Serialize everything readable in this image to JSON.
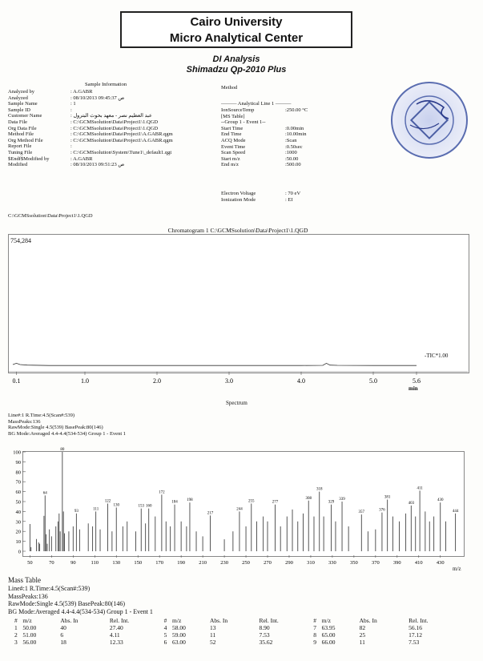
{
  "header": {
    "line1": "Cairo University",
    "line2": "Micro Analytical Center",
    "analysis": "DI Analysis",
    "instrument": "Shimadzu Qp-2010 Plus"
  },
  "sample_info": {
    "title": "Sample Information",
    "rows": [
      {
        "k": "Analyzed by",
        "v": ": A.GABR"
      },
      {
        "k": "Analyzed",
        "v": ": 08/10/2013 09:45:37 ص"
      },
      {
        "k": "Sample Name",
        "v": ": 1"
      },
      {
        "k": "Sample ID",
        "v": ":"
      },
      {
        "k": "Customer Name",
        "v": ": عبد العظيم نصر - معهد بحوث البترول"
      },
      {
        "k": "Data File",
        "v": ": C:\\GCMSsolution\\Data\\Project1\\1.QGD"
      },
      {
        "k": "Org Data File",
        "v": ": C:\\GCMSsolution\\Data\\Project1\\1.QGD"
      },
      {
        "k": "Method File",
        "v": ": C:\\GCMSsolution\\Data\\Project1\\A.GABR.qgm"
      },
      {
        "k": "Org Method File",
        "v": ": C:\\GCMSsolution\\Data\\Project1\\A.GABR.qgm"
      },
      {
        "k": "Report File",
        "v": ":"
      },
      {
        "k": "Tuning File",
        "v": ": C:\\GCMSsolution\\System\\Tune1\\_default1.qgt"
      },
      {
        "k": "$Endf$Modified by",
        "v": ": A.GABR"
      },
      {
        "k": "Modified",
        "v": ": 08/10/2013 09:51:23 ص"
      }
    ]
  },
  "method": {
    "title": "Method",
    "line_title": "——— Analytical Line 1 ———",
    "rows": [
      {
        "k": "IonSourceTemp",
        "v": ":250.00 °C"
      },
      {
        "k": "[MS Table]",
        "v": ""
      },
      {
        "k": "--Group  1 - Event  1--",
        "v": ""
      },
      {
        "k": "Start Time",
        "v": ":0.00min"
      },
      {
        "k": "End Time",
        "v": ":10.00min"
      },
      {
        "k": "ACQ Mode",
        "v": ":Scan"
      },
      {
        "k": "Event Time",
        "v": ":0.50sec"
      },
      {
        "k": "Scan Speed",
        "v": ":1000"
      },
      {
        "k": "Start m/z",
        "v": ":50.00"
      },
      {
        "k": "End m/z",
        "v": ":500.00"
      }
    ],
    "rows2": [
      {
        "k": "Electron Voltage",
        "v": ": 70 eV"
      },
      {
        "k": "Ionization Mode",
        "v": ": EI"
      }
    ]
  },
  "data_path": "C:\\GCMSsolution\\Data\\Project1\\1.QGD",
  "chromatogram": {
    "title": "Chromatogram 1 C:\\GCMSsolution\\Data\\Project1\\1.QGD",
    "max_label": "754,284",
    "trace_label": "-TIC*1.00",
    "x_unit": "min"
  },
  "spectrum_title": "Spectrum",
  "spectrum_info": [
    "Line#:1   R.Time:4.5(Scan#:539)",
    "MassPeaks:136",
    "RawMode:Single 4.5(539)  BasePeak:80(146)",
    "BG Mode:Averaged 4.4-4.4(534-534) Group 1 - Event 1"
  ],
  "spectrum_x_unit": "m/z",
  "mass_table": {
    "title": "Mass Table",
    "info": [
      "Line#:1   R.Time:4.5(Scan#:539)",
      "MassPeaks:136",
      "RawMode:Single 4.5(539) BasePeak:80(146)",
      "BG Mode:Averaged 4.4-4.4(534-534) Group 1 - Event 1"
    ],
    "headers": [
      "#",
      "m/z",
      "Abs. In",
      "Rel. Int.",
      "#",
      "m/z",
      "Abs. In",
      "Rel. Int.",
      "#",
      "m/z",
      "Abs. In",
      "Rel. Int."
    ],
    "rows": [
      [
        "1",
        "50.00",
        "40",
        "27.40",
        "4",
        "58.00",
        "13",
        "8.90",
        "7",
        "63.95",
        "82",
        "56.16"
      ],
      [
        "2",
        "51.00",
        "6",
        "4.11",
        "5",
        "59.00",
        "11",
        "7.53",
        "8",
        "65.00",
        "25",
        "17.12"
      ],
      [
        "3",
        "56.00",
        "18",
        "12.33",
        "6",
        "63.00",
        "52",
        "35.62",
        "9",
        "66.00",
        "11",
        "7.53"
      ]
    ]
  },
  "chart_data": [
    {
      "type": "line",
      "title": "Chromatogram 1 C:\\GCMSsolution\\Data\\Project1\\1.QGD",
      "xlabel": "min",
      "ylabel": "",
      "xlim": [
        0.0,
        5.6
      ],
      "x_ticks": [
        "0.1",
        "1.0",
        "2.0",
        "3.0",
        "4.0",
        "5.0",
        "5.6"
      ],
      "series": [
        {
          "name": "-TIC*1.00",
          "x": [
            0.0,
            0.05,
            0.1,
            0.2,
            0.5,
            1.0,
            1.5,
            2.0,
            2.5,
            3.0,
            3.5,
            4.0,
            4.3,
            4.35,
            4.4,
            4.5,
            5.0,
            5.5,
            5.6
          ],
          "y": [
            0.02,
            0.03,
            0.02,
            0.015,
            0.012,
            0.012,
            0.012,
            0.012,
            0.012,
            0.012,
            0.012,
            0.012,
            0.013,
            0.03,
            0.015,
            0.013,
            0.012,
            0.012,
            0.012
          ]
        }
      ]
    },
    {
      "type": "bar",
      "title": "Spectrum",
      "xlabel": "m/z",
      "ylabel": "",
      "xlim": [
        46,
        448
      ],
      "ylim": [
        0,
        100
      ],
      "y_ticks": [
        "0",
        "10",
        "20",
        "30",
        "40",
        "50",
        "60",
        "70",
        "80",
        "90",
        "100"
      ],
      "x_ticks": [
        "50",
        "70",
        "90",
        "110",
        "130",
        "150",
        "170",
        "190",
        "210",
        "230",
        "250",
        "270",
        "290",
        "310",
        "330",
        "350",
        "370",
        "390",
        "410",
        "430"
      ],
      "peaks": [
        {
          "mz": 50,
          "rel": 27.4
        },
        {
          "mz": 51,
          "rel": 4.11
        },
        {
          "mz": 56,
          "rel": 12.33
        },
        {
          "mz": 58,
          "rel": 8.9
        },
        {
          "mz": 59,
          "rel": 7.53
        },
        {
          "mz": 63,
          "rel": 35.62
        },
        {
          "mz": 64,
          "rel": 56.16
        },
        {
          "mz": 65,
          "rel": 17.12
        },
        {
          "mz": 66,
          "rel": 7.53
        },
        {
          "mz": 68,
          "rel": 22
        },
        {
          "mz": 70,
          "rel": 15
        },
        {
          "mz": 74,
          "rel": 25
        },
        {
          "mz": 76,
          "rel": 30
        },
        {
          "mz": 77,
          "rel": 38
        },
        {
          "mz": 78,
          "rel": 20
        },
        {
          "mz": 80,
          "rel": 100
        },
        {
          "mz": 81,
          "rel": 40
        },
        {
          "mz": 82,
          "rel": 18
        },
        {
          "mz": 86,
          "rel": 20
        },
        {
          "mz": 90,
          "rel": 25
        },
        {
          "mz": 93,
          "rel": 38
        },
        {
          "mz": 96,
          "rel": 22
        },
        {
          "mz": 104,
          "rel": 28
        },
        {
          "mz": 108,
          "rel": 25
        },
        {
          "mz": 111,
          "rel": 40
        },
        {
          "mz": 115,
          "rel": 22
        },
        {
          "mz": 122,
          "rel": 48
        },
        {
          "mz": 126,
          "rel": 20
        },
        {
          "mz": 130,
          "rel": 44
        },
        {
          "mz": 136,
          "rel": 25
        },
        {
          "mz": 140,
          "rel": 30
        },
        {
          "mz": 148,
          "rel": 20
        },
        {
          "mz": 153,
          "rel": 43
        },
        {
          "mz": 157,
          "rel": 28
        },
        {
          "mz": 160,
          "rel": 43
        },
        {
          "mz": 166,
          "rel": 35
        },
        {
          "mz": 172,
          "rel": 57
        },
        {
          "mz": 176,
          "rel": 30
        },
        {
          "mz": 180,
          "rel": 25
        },
        {
          "mz": 184,
          "rel": 47
        },
        {
          "mz": 190,
          "rel": 30
        },
        {
          "mz": 195,
          "rel": 25
        },
        {
          "mz": 198,
          "rel": 49
        },
        {
          "mz": 204,
          "rel": 20
        },
        {
          "mz": 210,
          "rel": 15
        },
        {
          "mz": 217,
          "rel": 36
        },
        {
          "mz": 230,
          "rel": 12
        },
        {
          "mz": 238,
          "rel": 20
        },
        {
          "mz": 244,
          "rel": 40
        },
        {
          "mz": 250,
          "rel": 25
        },
        {
          "mz": 255,
          "rel": 48
        },
        {
          "mz": 260,
          "rel": 30
        },
        {
          "mz": 266,
          "rel": 35
        },
        {
          "mz": 270,
          "rel": 30
        },
        {
          "mz": 277,
          "rel": 47
        },
        {
          "mz": 282,
          "rel": 25
        },
        {
          "mz": 288,
          "rel": 35
        },
        {
          "mz": 293,
          "rel": 42
        },
        {
          "mz": 298,
          "rel": 30
        },
        {
          "mz": 303,
          "rel": 38
        },
        {
          "mz": 308,
          "rel": 51
        },
        {
          "mz": 313,
          "rel": 35
        },
        {
          "mz": 318,
          "rel": 60
        },
        {
          "mz": 322,
          "rel": 35
        },
        {
          "mz": 329,
          "rel": 47
        },
        {
          "mz": 333,
          "rel": 30
        },
        {
          "mz": 339,
          "rel": 50
        },
        {
          "mz": 345,
          "rel": 25
        },
        {
          "mz": 357,
          "rel": 37
        },
        {
          "mz": 363,
          "rel": 20
        },
        {
          "mz": 370,
          "rel": 22
        },
        {
          "mz": 376,
          "rel": 39
        },
        {
          "mz": 381,
          "rel": 52
        },
        {
          "mz": 386,
          "rel": 35
        },
        {
          "mz": 392,
          "rel": 30
        },
        {
          "mz": 398,
          "rel": 38
        },
        {
          "mz": 403,
          "rel": 46
        },
        {
          "mz": 407,
          "rel": 35
        },
        {
          "mz": 411,
          "rel": 61
        },
        {
          "mz": 416,
          "rel": 40
        },
        {
          "mz": 420,
          "rel": 30
        },
        {
          "mz": 424,
          "rel": 35
        },
        {
          "mz": 430,
          "rel": 49
        },
        {
          "mz": 435,
          "rel": 30
        },
        {
          "mz": 444,
          "rel": 38
        }
      ],
      "labeled_peaks": [
        64,
        80,
        93,
        111,
        122,
        130,
        153,
        160,
        172,
        184,
        198,
        217,
        244,
        255,
        277,
        308,
        318,
        329,
        339,
        357,
        376,
        381,
        403,
        411,
        430,
        444
      ]
    }
  ]
}
